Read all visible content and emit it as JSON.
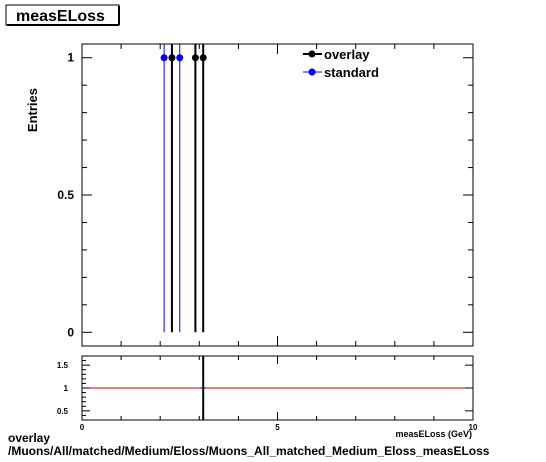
{
  "chart_data": [
    {
      "type": "scatter",
      "title": "measELoss",
      "ylabel": "Entries",
      "xlim": [
        0,
        10
      ],
      "ylim": [
        -0.05,
        1.05
      ],
      "yticks": [
        0,
        0.5,
        1
      ],
      "ytick_labels": [
        "0",
        "0.5",
        "1"
      ],
      "series": [
        {
          "name": "overlay",
          "color": "#000000",
          "x": [
            2.3,
            2.9,
            3.1
          ],
          "y": [
            1,
            1,
            1
          ]
        },
        {
          "name": "standard",
          "color": "#0000ff",
          "x": [
            2.1,
            2.5
          ],
          "y": [
            1,
            1
          ]
        }
      ],
      "legend_position": "top-right",
      "grid": false
    },
    {
      "type": "line",
      "xlim": [
        0,
        10
      ],
      "ylim": [
        0.3,
        1.7
      ],
      "xticks": [
        0,
        5,
        10
      ],
      "xtick_labels": [
        "0",
        "5",
        "10"
      ],
      "yticks": [
        0.5,
        1,
        1.5
      ],
      "ytick_labels": [
        "0.5",
        "1",
        "1.5"
      ],
      "reference_line": {
        "y": 1,
        "color": "#cc0000"
      },
      "points": [
        {
          "x": 3.1,
          "y": 1
        }
      ],
      "xlabel": "measELoss (GeV)"
    }
  ],
  "footer": {
    "line1": "overlay",
    "line2": "/Muons/All/matched/Medium/Eloss/Muons_All_matched_Medium_Eloss_measELoss"
  }
}
